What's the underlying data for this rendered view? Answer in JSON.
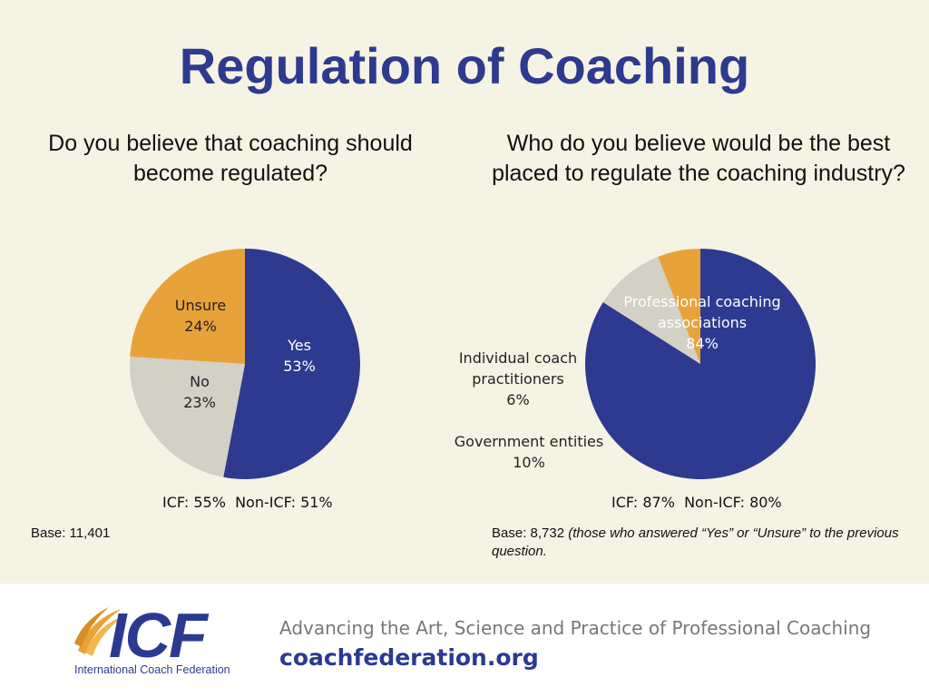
{
  "title": "Regulation of Coaching",
  "colors": {
    "navy": "#2e3a8f",
    "orange": "#e8a23a",
    "grey": "#d3d0c6",
    "background": "#f5f3e4"
  },
  "chart_data": [
    {
      "type": "pie",
      "title": "Do you believe that coaching should become regulated?",
      "slices": [
        {
          "label": "Yes",
          "value": 53,
          "display": "53%",
          "color": "#2e3a8f"
        },
        {
          "label": "No",
          "value": 23,
          "display": "23%",
          "color": "#d3d0c6"
        },
        {
          "label": "Unsure",
          "value": 24,
          "display": "24%",
          "color": "#e8a23a"
        }
      ],
      "subtitle": "ICF: 55%  Non-ICF: 51%",
      "base_label": "Base:",
      "base_value": "11,401"
    },
    {
      "type": "pie",
      "title": "Who do you believe would be the best placed to regulate the coaching industry?",
      "slices": [
        {
          "label": "Professional coaching associations",
          "label_line1": "Professional coaching",
          "label_line2": "associations",
          "value": 84,
          "display": "84%",
          "color": "#2e3a8f"
        },
        {
          "label": "Government entities",
          "label_line1": "Government entities",
          "value": 10,
          "display": "10%",
          "color": "#d3d0c6"
        },
        {
          "label": "Individual coach practitioners",
          "label_line1": "Individual coach",
          "label_line2": "practitioners",
          "value": 6,
          "display": "6%",
          "color": "#e8a23a"
        }
      ],
      "subtitle": "ICF: 87%  Non-ICF: 80%",
      "base_label": "Base:",
      "base_value": "8,732",
      "base_note": "(those who answered “Yes” or “Unsure” to the previous question."
    }
  ],
  "footer": {
    "logo_text": "ICF",
    "logo_sub": "International Coach Federation",
    "tagline": "Advancing the Art, Science and Practice of Professional Coaching",
    "website": "coachfederation.org"
  }
}
